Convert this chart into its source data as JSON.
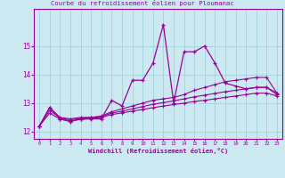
{
  "title": "",
  "xlabel": "Windchill (Refroidissement éolien,°C)",
  "x": [
    0,
    1,
    2,
    3,
    4,
    5,
    6,
    7,
    8,
    9,
    10,
    11,
    12,
    13,
    14,
    15,
    16,
    17,
    18,
    19,
    20,
    21,
    22,
    23
  ],
  "y_main": [
    12.2,
    12.85,
    12.45,
    12.35,
    12.45,
    12.45,
    12.45,
    13.1,
    12.9,
    13.8,
    13.8,
    14.4,
    15.75,
    13.0,
    14.8,
    14.8,
    15.0,
    14.4,
    13.7,
    13.6,
    13.5,
    13.55,
    13.55,
    13.35
  ],
  "y_line1": [
    12.2,
    12.85,
    12.5,
    12.45,
    12.5,
    12.5,
    12.55,
    12.7,
    12.8,
    12.9,
    13.0,
    13.1,
    13.15,
    13.2,
    13.3,
    13.45,
    13.55,
    13.65,
    13.75,
    13.8,
    13.85,
    13.9,
    13.9,
    13.35
  ],
  "y_line2": [
    12.2,
    12.75,
    12.48,
    12.42,
    12.47,
    12.5,
    12.53,
    12.65,
    12.72,
    12.8,
    12.88,
    12.96,
    13.02,
    13.08,
    13.15,
    13.22,
    13.28,
    13.34,
    13.4,
    13.45,
    13.5,
    13.55,
    13.55,
    13.3
  ],
  "y_line3": [
    12.2,
    12.65,
    12.44,
    12.38,
    12.43,
    12.46,
    12.5,
    12.6,
    12.66,
    12.72,
    12.78,
    12.84,
    12.9,
    12.95,
    13.0,
    13.06,
    13.1,
    13.15,
    13.2,
    13.25,
    13.3,
    13.35,
    13.35,
    13.25
  ],
  "line_color": "#990099",
  "bg_color": "#cce8f0",
  "grid_color": "#99ccd9",
  "ylim": [
    11.75,
    16.3
  ],
  "xlim": [
    -0.5,
    23.5
  ]
}
